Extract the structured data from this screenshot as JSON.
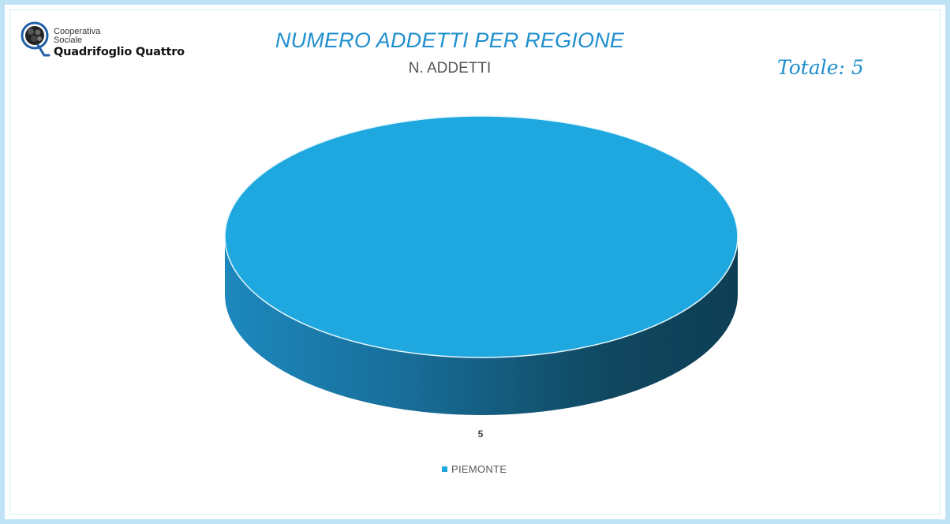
{
  "logo": {
    "line1": "Cooperativa",
    "line2": "Sociale",
    "line3": "Quadrifoglio Quattro"
  },
  "header": {
    "title": "NUMERO ADDETTI PER REGIONE",
    "subtitle": "N. ADDETTI",
    "total": "Totale: 5"
  },
  "colors": {
    "accent": "#1f8fce",
    "slice_top": "#1ea8df",
    "slice_side_light": "#1d88bd",
    "slice_side_dark": "#0d3e55",
    "frame": "#bfe3f5"
  },
  "chart_data": {
    "type": "pie",
    "style": "3d",
    "title": "N. ADDETTI",
    "categories": [
      "PIEMONTE"
    ],
    "values": [
      5
    ],
    "data_labels": [
      "5"
    ],
    "legend": {
      "placement": "bottom",
      "entries": [
        "PIEMONTE"
      ]
    }
  }
}
